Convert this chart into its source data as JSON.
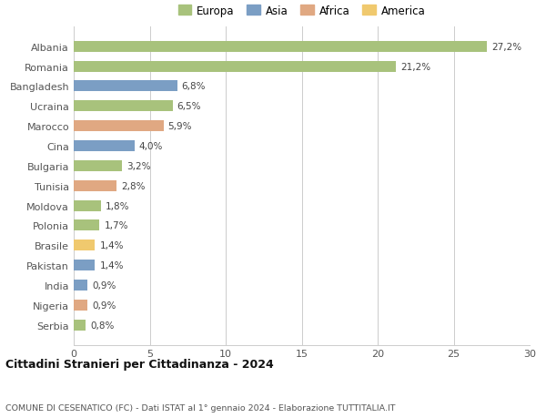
{
  "countries": [
    "Albania",
    "Romania",
    "Bangladesh",
    "Ucraina",
    "Marocco",
    "Cina",
    "Bulgaria",
    "Tunisia",
    "Moldova",
    "Polonia",
    "Brasile",
    "Pakistan",
    "India",
    "Nigeria",
    "Serbia"
  ],
  "values": [
    27.2,
    21.2,
    6.8,
    6.5,
    5.9,
    4.0,
    3.2,
    2.8,
    1.8,
    1.7,
    1.4,
    1.4,
    0.9,
    0.9,
    0.8
  ],
  "labels": [
    "27,2%",
    "21,2%",
    "6,8%",
    "6,5%",
    "5,9%",
    "4,0%",
    "3,2%",
    "2,8%",
    "1,8%",
    "1,7%",
    "1,4%",
    "1,4%",
    "0,9%",
    "0,9%",
    "0,8%"
  ],
  "continents": [
    "Europa",
    "Europa",
    "Asia",
    "Europa",
    "Africa",
    "Asia",
    "Europa",
    "Africa",
    "Europa",
    "Europa",
    "America",
    "Asia",
    "Asia",
    "Africa",
    "Europa"
  ],
  "continent_colors": {
    "Europa": "#a8c27c",
    "Asia": "#7b9ec4",
    "Africa": "#e0a882",
    "America": "#f0c96e"
  },
  "legend_order": [
    "Europa",
    "Asia",
    "Africa",
    "America"
  ],
  "title": "Cittadini Stranieri per Cittadinanza - 2024",
  "subtitle": "COMUNE DI CESENATICO (FC) - Dati ISTAT al 1° gennaio 2024 - Elaborazione TUTTITALIA.IT",
  "xlim": [
    0,
    30
  ],
  "xticks": [
    0,
    5,
    10,
    15,
    20,
    25,
    30
  ],
  "background_color": "#ffffff",
  "grid_color": "#cccccc",
  "bar_height": 0.55
}
